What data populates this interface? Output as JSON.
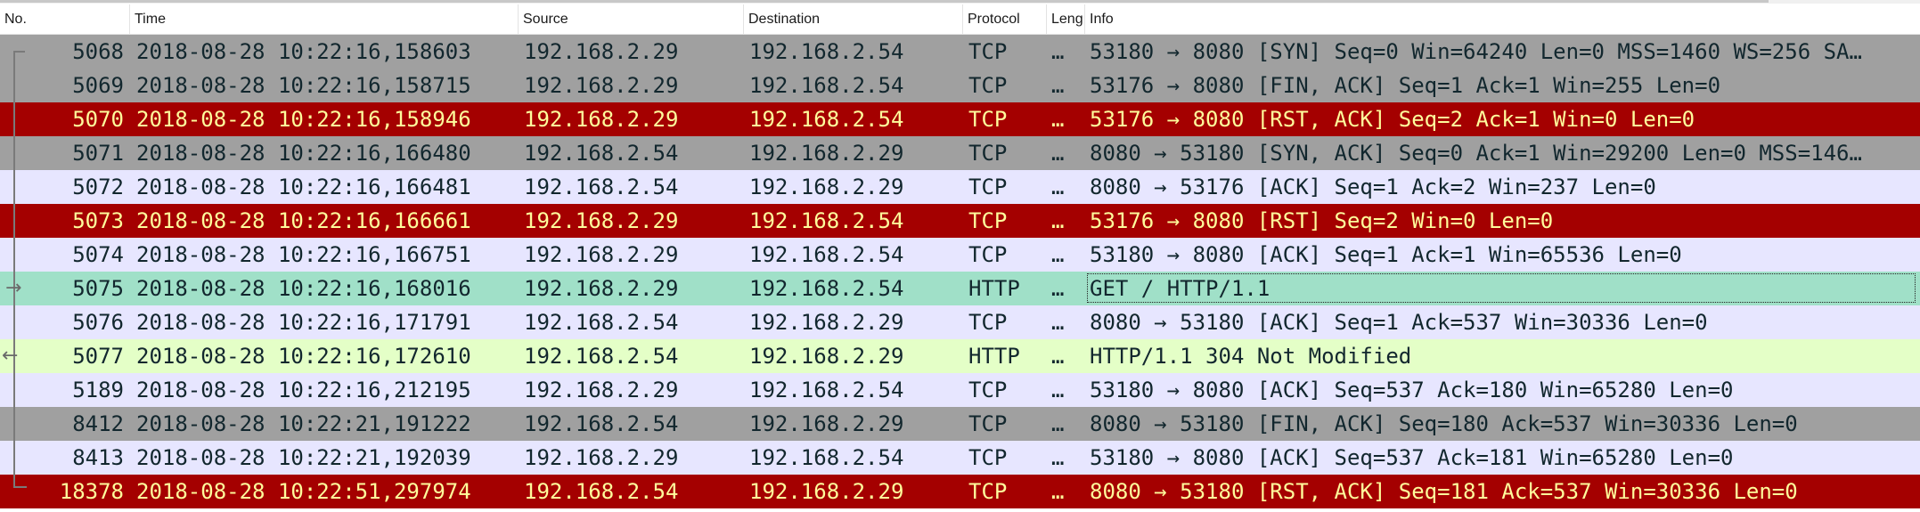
{
  "columns": {
    "no": "No.",
    "time": "Time",
    "source": "Source",
    "destination": "Destination",
    "protocol": "Protocol",
    "length": "Leng",
    "info": "Info"
  },
  "colors": {
    "tcp_gray": "#a0a0a0",
    "tcp_normal": "#e7e6ff",
    "rst_red": "#a40000",
    "rst_text": "#fffc9c",
    "http_request": "#a0e0c8",
    "http_response": "#e4ffc7",
    "text_dark": "#12272e"
  },
  "packets": [
    {
      "no": "5068",
      "time": "2018-08-28 10:22:16,158603",
      "source": "192.168.2.29",
      "destination": "192.168.2.54",
      "protocol": "TCP",
      "length": "…",
      "info": "53180 → 8080 [SYN] Seq=0 Win=64240 Len=0 MSS=1460 WS=256 SA…",
      "style": "gray"
    },
    {
      "no": "5069",
      "time": "2018-08-28 10:22:16,158715",
      "source": "192.168.2.29",
      "destination": "192.168.2.54",
      "protocol": "TCP",
      "length": "…",
      "info": "53176 → 8080 [FIN, ACK] Seq=1 Ack=1 Win=255 Len=0",
      "style": "gray"
    },
    {
      "no": "5070",
      "time": "2018-08-28 10:22:16,158946",
      "source": "192.168.2.29",
      "destination": "192.168.2.54",
      "protocol": "TCP",
      "length": "…",
      "info": "53176 → 8080 [RST, ACK] Seq=2 Ack=1 Win=0 Len=0",
      "style": "red"
    },
    {
      "no": "5071",
      "time": "2018-08-28 10:22:16,166480",
      "source": "192.168.2.54",
      "destination": "192.168.2.29",
      "protocol": "TCP",
      "length": "…",
      "info": "8080 → 53180 [SYN, ACK] Seq=0 Ack=1 Win=29200 Len=0 MSS=146…",
      "style": "gray"
    },
    {
      "no": "5072",
      "time": "2018-08-28 10:22:16,166481",
      "source": "192.168.2.54",
      "destination": "192.168.2.29",
      "protocol": "TCP",
      "length": "…",
      "info": "8080 → 53176 [ACK] Seq=1 Ack=2 Win=237 Len=0",
      "style": "normal"
    },
    {
      "no": "5073",
      "time": "2018-08-28 10:22:16,166661",
      "source": "192.168.2.29",
      "destination": "192.168.2.54",
      "protocol": "TCP",
      "length": "…",
      "info": "53176 → 8080 [RST] Seq=2 Win=0 Len=0",
      "style": "red"
    },
    {
      "no": "5074",
      "time": "2018-08-28 10:22:16,166751",
      "source": "192.168.2.29",
      "destination": "192.168.2.54",
      "protocol": "TCP",
      "length": "…",
      "info": "53180 → 8080 [ACK] Seq=1 Ack=1 Win=65536 Len=0",
      "style": "normal"
    },
    {
      "no": "5075",
      "time": "2018-08-28 10:22:16,168016",
      "source": "192.168.2.29",
      "destination": "192.168.2.54",
      "protocol": "HTTP",
      "length": "…",
      "info": "GET / HTTP/1.1",
      "style": "http_request",
      "selected": true
    },
    {
      "no": "5076",
      "time": "2018-08-28 10:22:16,171791",
      "source": "192.168.2.54",
      "destination": "192.168.2.29",
      "protocol": "TCP",
      "length": "…",
      "info": "8080 → 53180 [ACK] Seq=1 Ack=537 Win=30336 Len=0",
      "style": "normal"
    },
    {
      "no": "5077",
      "time": "2018-08-28 10:22:16,172610",
      "source": "192.168.2.54",
      "destination": "192.168.2.29",
      "protocol": "HTTP",
      "length": "…",
      "info": "HTTP/1.1 304 Not Modified",
      "style": "http_response"
    },
    {
      "no": "5189",
      "time": "2018-08-28 10:22:16,212195",
      "source": "192.168.2.29",
      "destination": "192.168.2.54",
      "protocol": "TCP",
      "length": "…",
      "info": "53180 → 8080 [ACK] Seq=537 Ack=180 Win=65280 Len=0",
      "style": "normal"
    },
    {
      "no": "8412",
      "time": "2018-08-28 10:22:21,191222",
      "source": "192.168.2.54",
      "destination": "192.168.2.29",
      "protocol": "TCP",
      "length": "…",
      "info": "8080 → 53180 [FIN, ACK] Seq=180 Ack=537 Win=30336 Len=0",
      "style": "gray"
    },
    {
      "no": "8413",
      "time": "2018-08-28 10:22:21,192039",
      "source": "192.168.2.29",
      "destination": "192.168.2.54",
      "protocol": "TCP",
      "length": "…",
      "info": "53180 → 8080 [ACK] Seq=537 Ack=181 Win=65280 Len=0",
      "style": "normal"
    },
    {
      "no": "18378",
      "time": "2018-08-28 10:22:51,297974",
      "source": "192.168.2.54",
      "destination": "192.168.2.29",
      "protocol": "TCP",
      "length": "…",
      "info": "8080 → 53180 [RST, ACK] Seq=181 Ack=537 Win=30336 Len=0",
      "style": "red"
    }
  ]
}
